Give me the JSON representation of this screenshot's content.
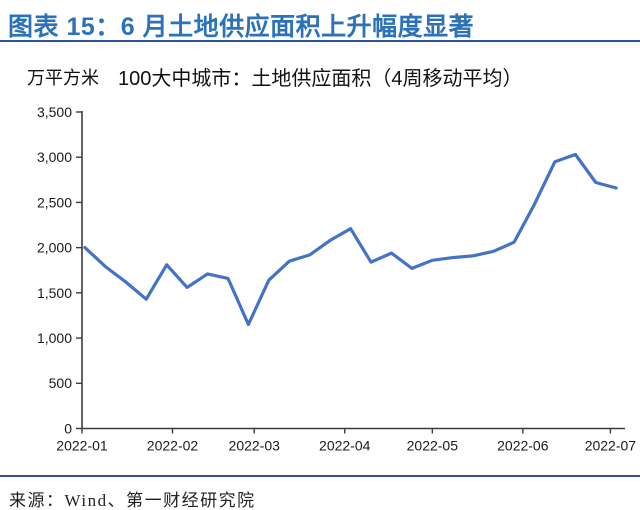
{
  "header": {
    "title": "图表 15：6 月土地供应面积上升幅度显著"
  },
  "footer": {
    "source": "来源：Wind、第一财经研究院"
  },
  "colors": {
    "title_blue": "#2B72B8",
    "rule_blue": "#2A5699",
    "line_blue": "#4472C4",
    "axis_color": "#3C3C3C"
  },
  "chart_data": {
    "type": "line",
    "title": "100大中城市：土地供应面积（4周移动平均）",
    "unit_label": "万平方米",
    "xlabel": "",
    "ylabel": "万平方米",
    "ylim": [
      0,
      3500
    ],
    "x_range": [
      "2022-01-01",
      "2022-07-06"
    ],
    "grid": "off",
    "legend": "none",
    "axis_color": "#3C3C3C",
    "y_ticks": [
      {
        "label": "0",
        "value": 0
      },
      {
        "label": "500",
        "value": 500
      },
      {
        "label": "1,000",
        "value": 1000
      },
      {
        "label": "1,500",
        "value": 1500
      },
      {
        "label": "2,000",
        "value": 2000
      },
      {
        "label": "2,500",
        "value": 2500
      },
      {
        "label": "3,000",
        "value": 3000
      },
      {
        "label": "3,500",
        "value": 3500
      }
    ],
    "x_ticks": [
      {
        "label": "2022-01",
        "date": "2022-01-01"
      },
      {
        "label": "2022-02",
        "date": "2022-02-01"
      },
      {
        "label": "2022-03",
        "date": "2022-03-01"
      },
      {
        "label": "2022-04",
        "date": "2022-04-01"
      },
      {
        "label": "2022-05",
        "date": "2022-05-01"
      },
      {
        "label": "2022-06",
        "date": "2022-06-01"
      },
      {
        "label": "2022-07",
        "date": "2022-07-01"
      }
    ],
    "series": [
      {
        "name": "100大中城市：土地供应面积（4周移动平均）",
        "color": "#4472C4",
        "dates": [
          "2022-01-02",
          "2022-01-09",
          "2022-01-16",
          "2022-01-23",
          "2022-01-30",
          "2022-02-06",
          "2022-02-13",
          "2022-02-20",
          "2022-02-27",
          "2022-03-06",
          "2022-03-13",
          "2022-03-20",
          "2022-03-27",
          "2022-04-03",
          "2022-04-10",
          "2022-04-17",
          "2022-04-24",
          "2022-05-01",
          "2022-05-08",
          "2022-05-15",
          "2022-05-22",
          "2022-05-29",
          "2022-06-05",
          "2022-06-12",
          "2022-06-19",
          "2022-06-26",
          "2022-07-03"
        ],
        "values": [
          2000,
          1790,
          1620,
          1430,
          1810,
          1560,
          1710,
          1660,
          1150,
          1640,
          1850,
          1920,
          2080,
          2210,
          1840,
          1940,
          1770,
          1860,
          1890,
          1910,
          1960,
          2060,
          2480,
          2950,
          3030,
          2720,
          2660
        ]
      }
    ]
  }
}
